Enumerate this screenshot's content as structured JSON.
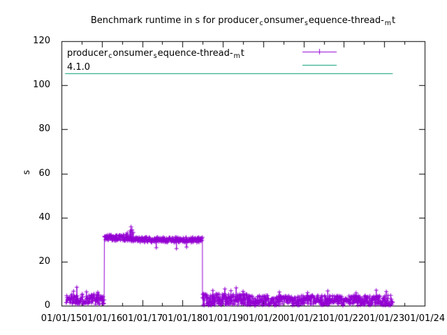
{
  "window": {
    "background": "#ffffff"
  },
  "colors": {
    "series1": "#9400d3",
    "series2": "#009e73",
    "axis": "#000000",
    "text": "#000000"
  },
  "chart_data": {
    "type": "scatter",
    "plot_style": "linespoints",
    "title": "Benchmark runtime in s for producer_consumer_sequence-thread-_mt",
    "title_segments": [
      {
        "text": "Benchmark runtime in s for producer"
      },
      {
        "text": "c",
        "subscript": true
      },
      {
        "text": "onsumer"
      },
      {
        "text": "s",
        "subscript": true
      },
      {
        "text": "equence-thread-"
      },
      {
        "text": "m",
        "subscript": true
      },
      {
        "text": "t"
      }
    ],
    "xlabel": "",
    "ylabel": "s",
    "ylim": [
      0,
      120
    ],
    "yticks": [
      0,
      20,
      40,
      60,
      80,
      100,
      120
    ],
    "x_years": [
      2015,
      2024
    ],
    "xtick_labels": [
      "01/01/15",
      "01/01/16",
      "01/01/17",
      "01/01/18",
      "01/01/19",
      "01/01/20",
      "01/01/21",
      "01/01/22",
      "01/01/23",
      "01/01/24"
    ],
    "x_minor_ticks_per_interval": 1,
    "grid": false,
    "legend": {
      "position": "inside top-left",
      "entries": [
        {
          "label": "producer_consumer_sequence-thread-_mt",
          "label_segments": [
            {
              "text": "producer"
            },
            {
              "text": "c",
              "subscript": true
            },
            {
              "text": "onsumer"
            },
            {
              "text": "s",
              "subscript": true
            },
            {
              "text": "equence-thread-"
            },
            {
              "text": "m",
              "subscript": true
            },
            {
              "text": "t"
            }
          ],
          "color": "#9400d3",
          "style": "line-with-plus-marker"
        },
        {
          "label": "4.1.0",
          "color": "#009e73",
          "style": "line"
        }
      ]
    },
    "series": [
      {
        "name": "producer_consumer_sequence-thread-_mt",
        "color": "#9400d3",
        "marker": "plus",
        "style": "linespoints",
        "sample_interval_years": 0.0082,
        "band_segments": [
          {
            "x_start": 2015.115,
            "x_end": 2016.065,
            "base": 3.0,
            "spread": 2.5,
            "min": 0.2
          },
          {
            "x_start": 2016.065,
            "x_end": 2016.73,
            "base": 30.9,
            "spread": 1.5,
            "min": 28.0
          },
          {
            "x_start": 2016.73,
            "x_end": 2018.495,
            "base": 29.9,
            "spread": 1.2,
            "min": 27.5
          },
          {
            "x_start": 2018.495,
            "x_end": 2019.6,
            "base": 2.8,
            "spread": 2.7,
            "min": 0.05
          },
          {
            "x_start": 2019.6,
            "x_end": 2023.21,
            "base": 2.4,
            "spread": 2.3,
            "min": 0.1
          }
        ],
        "outlier_points": [
          {
            "x": 2015.3,
            "y": 6.6
          },
          {
            "x": 2015.38,
            "y": 8.4
          },
          {
            "x": 2015.62,
            "y": 6.3
          },
          {
            "x": 2015.9,
            "y": 6.1
          },
          {
            "x": 2016.63,
            "y": 33.0
          },
          {
            "x": 2016.7,
            "y": 33.9
          },
          {
            "x": 2016.725,
            "y": 35.8
          },
          {
            "x": 2016.75,
            "y": 34.4
          },
          {
            "x": 2016.78,
            "y": 33.2
          },
          {
            "x": 2017.35,
            "y": 26.3
          },
          {
            "x": 2017.85,
            "y": 25.9
          },
          {
            "x": 2018.1,
            "y": 26.6
          },
          {
            "x": 2018.75,
            "y": 6.9
          },
          {
            "x": 2019.05,
            "y": 7.6
          },
          {
            "x": 2019.2,
            "y": 6.8
          },
          {
            "x": 2019.33,
            "y": 8.1
          },
          {
            "x": 2019.5,
            "y": 6.5
          },
          {
            "x": 2020.4,
            "y": 6.2
          },
          {
            "x": 2021.1,
            "y": 5.9
          },
          {
            "x": 2021.6,
            "y": 6.7
          },
          {
            "x": 2022.3,
            "y": 5.8
          },
          {
            "x": 2022.8,
            "y": 7.0
          },
          {
            "x": 2023.05,
            "y": 6.4
          }
        ]
      },
      {
        "name": "4.1.0",
        "color": "#009e73",
        "style": "constant-line",
        "constant_value": 105.5,
        "x_start": 2015.09,
        "x_end": 2023.21
      }
    ]
  }
}
